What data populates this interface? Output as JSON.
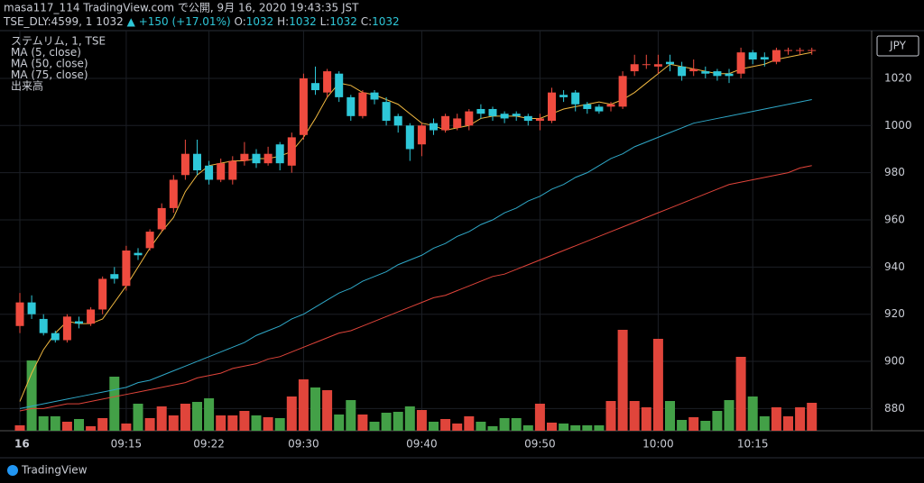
{
  "chart_data": {
    "type": "candlestick",
    "header": {
      "publisher": "masa117_114 TradingView.com で公開, 9月 16, 2020 19:43:35 JST",
      "symbol": "TSE_DLY:4599, 1",
      "last": "1032",
      "change": "▲ +150 (+17.01%)",
      "ohlc": [
        {
          "label": "O:",
          "value": "1032"
        },
        {
          "label": "H:",
          "value": "1032"
        },
        {
          "label": "L:",
          "value": "1032"
        },
        {
          "label": "C:",
          "value": "1032"
        }
      ]
    },
    "legend": [
      "ステムリム, 1, TSE",
      "MA (5, close)",
      "MA (50, close)",
      "MA (75, close)",
      "出来高"
    ],
    "currency": "JPY",
    "brand": "TradingView",
    "categories": [
      "16",
      null,
      null,
      null,
      null,
      null,
      null,
      null,
      null,
      "09:15",
      null,
      null,
      null,
      null,
      null,
      null,
      "09:22",
      null,
      null,
      null,
      null,
      null,
      null,
      null,
      "09:30",
      null,
      null,
      null,
      null,
      null,
      null,
      null,
      null,
      null,
      "09:40",
      null,
      null,
      null,
      null,
      null,
      null,
      null,
      null,
      null,
      "09:50",
      null,
      null,
      null,
      null,
      null,
      null,
      null,
      null,
      null,
      "10:00",
      null,
      null,
      null,
      null,
      null,
      null,
      null,
      "10:15",
      null,
      null,
      null,
      null,
      null
    ],
    "open": [
      915,
      925,
      918,
      912,
      909,
      917,
      916,
      922,
      937,
      932,
      946,
      948,
      956,
      965,
      979,
      988,
      983,
      977,
      977,
      985,
      988,
      984,
      992,
      983,
      996,
      1018,
      1014,
      1022,
      1012,
      1004,
      1014,
      1010,
      1004,
      1000,
      992,
      1001,
      998,
      999,
      1000,
      1007,
      1007,
      1005,
      1005,
      1004,
      1002,
      1002,
      1013,
      1014,
      1009,
      1008,
      1008,
      1008,
      1023,
      1026,
      1025,
      1027,
      1025,
      1023,
      1023,
      1023,
      1022,
      1022,
      1031,
      1029,
      1027,
      1032,
      1032,
      1032
    ],
    "high": [
      929,
      928,
      920,
      913,
      920,
      919,
      923,
      936,
      940,
      949,
      948,
      956,
      967,
      979,
      994,
      994,
      985,
      986,
      987,
      993,
      990,
      991,
      993,
      997,
      1022,
      1025,
      1024,
      1023,
      1013,
      1015,
      1015,
      1012,
      1005,
      1001,
      1001,
      1003,
      1005,
      1005,
      1007,
      1009,
      1008,
      1006,
      1006,
      1005,
      1005,
      1016,
      1015,
      1015,
      1010,
      1009,
      1010,
      1023,
      1030,
      1030,
      1030,
      1030,
      1027,
      1028,
      1025,
      1024,
      1024,
      1033,
      1032,
      1031,
      1033,
      1033,
      1033,
      1033
    ],
    "low": [
      912,
      918,
      911,
      908,
      908,
      914,
      915,
      920,
      933,
      930,
      943,
      947,
      955,
      963,
      977,
      979,
      975,
      976,
      975,
      983,
      982,
      983,
      981,
      980,
      994,
      1013,
      1012,
      1010,
      1002,
      1003,
      1009,
      1000,
      997,
      985,
      987,
      996,
      997,
      998,
      998,
      1003,
      1002,
      1001,
      1002,
      1000,
      998,
      1001,
      1010,
      1006,
      1005,
      1005,
      1006,
      1007,
      1021,
      1024,
      1022,
      1023,
      1019,
      1021,
      1020,
      1019,
      1018,
      1020,
      1026,
      1025,
      1026,
      1030,
      1030,
      1030
    ],
    "close": [
      925,
      920,
      912,
      909,
      919,
      916,
      922,
      935,
      935,
      947,
      945,
      955,
      965,
      977,
      988,
      981,
      977,
      984,
      985,
      988,
      984,
      988,
      984,
      995,
      1020,
      1015,
      1023,
      1012,
      1004,
      1014,
      1011,
      1002,
      1000,
      990,
      1000,
      998,
      1004,
      1003,
      1006,
      1005,
      1004,
      1003,
      1004,
      1002,
      1003,
      1014,
      1012,
      1009,
      1007,
      1006,
      1009,
      1021,
      1026,
      1026,
      1026,
      1026,
      1021,
      1024,
      1022,
      1021,
      1021,
      1031,
      1028,
      1028,
      1032,
      1032,
      1032,
      1032
    ],
    "volume": [
      6,
      78,
      16,
      16,
      10,
      13,
      5,
      14,
      60,
      8,
      30,
      14,
      27,
      17,
      30,
      32,
      36,
      17,
      17,
      22,
      17,
      15,
      14,
      38,
      57,
      48,
      45,
      18,
      34,
      18,
      10,
      20,
      21,
      27,
      23,
      10,
      13,
      8,
      16,
      10,
      5,
      14,
      14,
      6,
      30,
      9,
      8,
      6,
      6,
      6,
      33,
      112,
      33,
      26,
      102,
      33,
      12,
      15,
      11,
      22,
      34,
      82,
      38,
      16,
      26,
      16,
      26,
      31
    ],
    "vlim": [
      0,
      150
    ],
    "ma_series": [
      {
        "name": "MA (5, close)",
        "color": "#f0b840",
        "values": [
          883,
          895,
          905,
          912,
          917,
          916,
          916,
          918,
          925,
          932,
          940,
          948,
          955,
          961,
          972,
          979,
          983,
          984,
          985,
          985,
          986,
          986,
          987,
          989,
          995,
          1003,
          1012,
          1018,
          1017,
          1014,
          1013,
          1011,
          1009,
          1005,
          1001,
          1000,
          998,
          999,
          1000,
          1003,
          1004,
          1004,
          1004,
          1003,
          1003,
          1005,
          1007,
          1008,
          1009,
          1010,
          1009,
          1011,
          1014,
          1018,
          1022,
          1026,
          1025,
          1024,
          1023,
          1022,
          1022,
          1024,
          1025,
          1026,
          1028,
          1029,
          1030,
          1031
        ]
      },
      {
        "name": "MA (50, close)",
        "color": "#2fa8c8",
        "values": [
          880,
          881,
          882,
          883,
          884,
          885,
          886,
          887,
          888,
          889,
          891,
          892,
          894,
          896,
          898,
          900,
          902,
          904,
          906,
          908,
          911,
          913,
          915,
          918,
          920,
          923,
          926,
          929,
          931,
          934,
          936,
          938,
          941,
          943,
          945,
          948,
          950,
          953,
          955,
          958,
          960,
          963,
          965,
          968,
          970,
          973,
          975,
          978,
          980,
          983,
          986,
          988,
          991,
          993,
          995,
          997,
          999,
          1001,
          1002,
          1003,
          1004,
          1005,
          1006,
          1007,
          1008,
          1009,
          1010,
          1011
        ]
      },
      {
        "name": "MA (75, close)",
        "color": "#e0443a",
        "values": [
          879,
          880,
          880,
          881,
          882,
          882,
          883,
          884,
          885,
          886,
          887,
          888,
          889,
          890,
          891,
          893,
          894,
          895,
          897,
          898,
          899,
          901,
          902,
          904,
          906,
          908,
          910,
          912,
          913,
          915,
          917,
          919,
          921,
          923,
          925,
          927,
          928,
          930,
          932,
          934,
          936,
          937,
          939,
          941,
          943,
          945,
          947,
          949,
          951,
          953,
          955,
          957,
          959,
          961,
          963,
          965,
          967,
          969,
          971,
          973,
          975,
          976,
          977,
          978,
          979,
          980,
          982,
          983
        ]
      }
    ],
    "up_color": "#ef4b3f",
    "down_color": "#2ec7d8",
    "vol_up_color": "#e0453b",
    "vol_down_color": "#43a047",
    "ylim": [
      870.6,
      1038.7
    ],
    "yticks": [
      880,
      900,
      920,
      940,
      960,
      980,
      1000,
      1020
    ],
    "grid": true
  }
}
